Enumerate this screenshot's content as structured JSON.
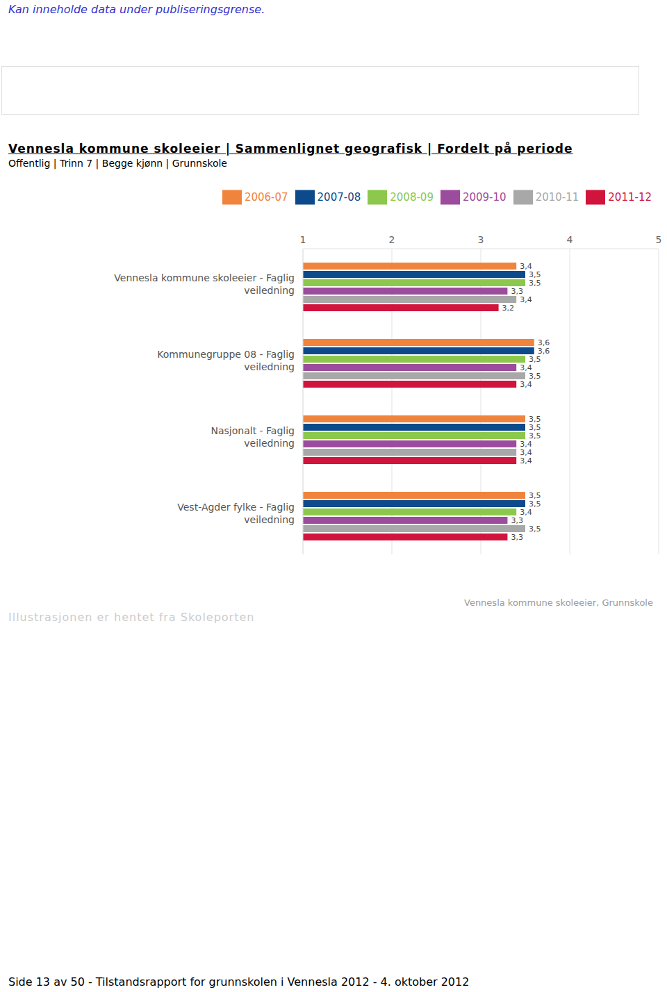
{
  "page": {
    "notice": "Kan inneholde data under publiseringsgrense.",
    "source": "Illustrasjonen er hentet fra Skoleporten",
    "watermark": "Vennesla kommune skoleeier, Grunnskole",
    "footer": "Side 13 av 50 - Tilstandsrapport for grunnskolen i Vennesla 2012 - 4. oktober 2012"
  },
  "chart_data": {
    "type": "bar",
    "orientation": "horizontal",
    "title": "Vennesla kommune skoleeier | Sammenlignet geografisk | Fordelt på periode",
    "subtitle": "Offentlig | Trinn 7 | Begge kjønn | Grunnskole",
    "categories": [
      "Vennesla kommune skoleeier - Faglig veiledning",
      "Kommunegruppe 08 - Faglig veiledning",
      "Nasjonalt - Faglig veiledning",
      "Vest-Agder fylke - Faglig veiledning"
    ],
    "series": [
      {
        "name": "2006-07",
        "color": "#f0843c",
        "values": [
          3.4,
          3.6,
          3.5,
          3.5
        ],
        "value_labels": [
          "3,4",
          "3,6",
          "3,5",
          "3,5"
        ]
      },
      {
        "name": "2007-08",
        "color": "#0c4a8c",
        "values": [
          3.5,
          3.6,
          3.5,
          3.5
        ],
        "value_labels": [
          "3,5",
          "3,6",
          "3,5",
          "3,5"
        ]
      },
      {
        "name": "2008-09",
        "color": "#8cc84c",
        "values": [
          3.5,
          3.5,
          3.5,
          3.4
        ],
        "value_labels": [
          "3,5",
          "3,5",
          "3,5",
          "3,4"
        ]
      },
      {
        "name": "2009-10",
        "color": "#9c4c9c",
        "values": [
          3.3,
          3.4,
          3.4,
          3.3
        ],
        "value_labels": [
          "3,3",
          "3,4",
          "3,4",
          "3,3"
        ]
      },
      {
        "name": "2010-11",
        "color": "#a8a8a8",
        "values": [
          3.4,
          3.5,
          3.4,
          3.5
        ],
        "value_labels": [
          "3,4",
          "3,5",
          "3,4",
          "3,5"
        ]
      },
      {
        "name": "2011-12",
        "color": "#d0143c",
        "values": [
          3.2,
          3.4,
          3.4,
          3.3
        ],
        "value_labels": [
          "3,2",
          "3,4",
          "3,4",
          "3,3"
        ]
      }
    ],
    "xlim": [
      1,
      5
    ],
    "xticks": [
      1,
      2,
      3,
      4,
      5
    ],
    "grid": true,
    "data_labels": true,
    "legend": "top"
  }
}
